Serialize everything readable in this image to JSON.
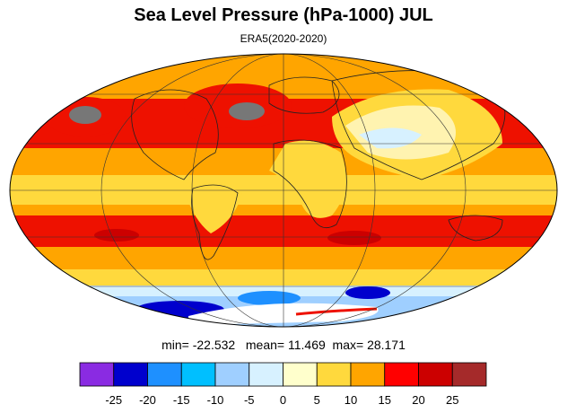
{
  "title": "Sea Level Pressure (hPa-1000) JUL",
  "subtitle": "ERA5(2020-2020)",
  "stats": {
    "min_label": "min=",
    "min": "-22.532",
    "mean_label": "mean=",
    "mean": "11.469",
    "max_label": "max=",
    "max": "28.171"
  },
  "colorbar": {
    "colors": [
      "#8a2be2",
      "#0000cd",
      "#1e90ff",
      "#00bfff",
      "#9fcfff",
      "#d7f1ff",
      "#ffffcc",
      "#ffd93d",
      "#ffa500",
      "#ff0000",
      "#cc0000",
      "#a52a2a"
    ],
    "ticks": [
      "-25",
      "-20",
      "-15",
      "-10",
      "-5",
      "0",
      "5",
      "10",
      "15",
      "20",
      "25"
    ]
  },
  "map": {
    "projection": "mollweide",
    "colors": {
      "ocean_subtropical_high": "#ee1100",
      "midlatitude": "#ffa500",
      "equatorial": "#ffd93d",
      "land_low": "#fff3b0",
      "high_core": "#777777",
      "antarctic_low": "#1e90ff",
      "antarctic_deep": "#0000cd"
    }
  }
}
